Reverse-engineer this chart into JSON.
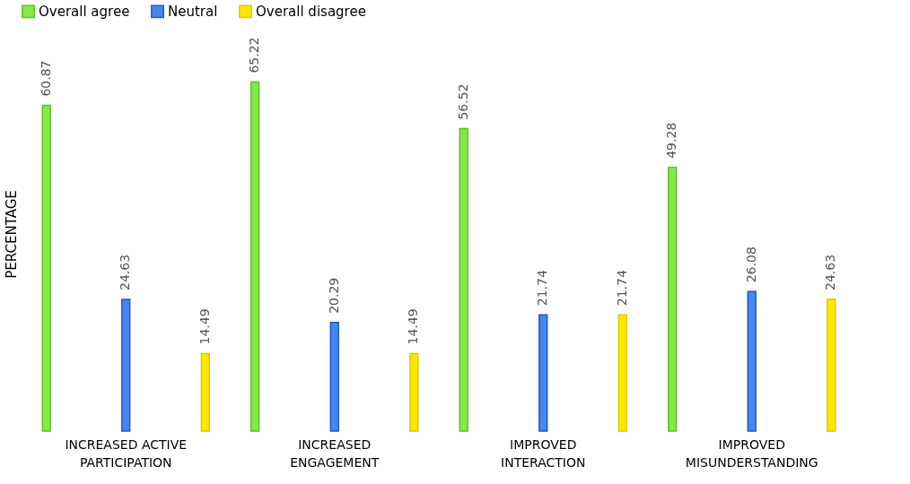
{
  "chart_data": {
    "type": "bar",
    "ylabel": "PERCENTAGE",
    "categories": [
      "INCREASED ACTIVE\nPARTICIPATION",
      "INCREASED\nENGAGEMENT",
      "IMPROVED\nINTERACTION",
      "IMPROVED\nMISUNDERSTANDING"
    ],
    "series": [
      {
        "name": "Overall agree",
        "color": "#86e84a",
        "values": [
          60.87,
          65.22,
          56.52,
          49.28
        ]
      },
      {
        "name": "Neutral",
        "color": "#4a86e8",
        "values": [
          24.63,
          20.29,
          21.74,
          26.08
        ]
      },
      {
        "name": "Overall disagree",
        "color": "#ffe600",
        "values": [
          14.49,
          14.49,
          21.74,
          24.63
        ]
      }
    ],
    "data_labels": true,
    "legend": "top",
    "grid": false
  }
}
